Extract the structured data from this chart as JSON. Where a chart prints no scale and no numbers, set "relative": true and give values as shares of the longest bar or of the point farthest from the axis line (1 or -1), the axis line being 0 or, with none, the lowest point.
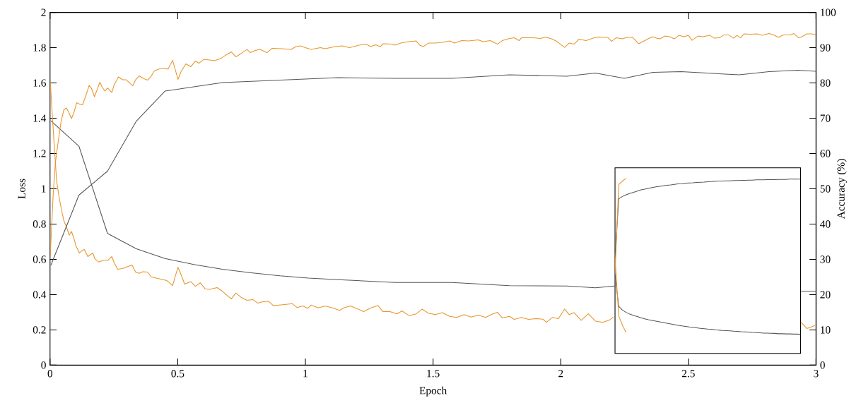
{
  "chart_data": [
    {
      "type": "line",
      "xlabel": "Epoch",
      "ylabel": "Loss",
      "y2label": "Accuracy (%)",
      "xlim": [
        0,
        3
      ],
      "xticks": [
        0,
        0.5,
        1,
        1.5,
        2,
        2.5,
        3
      ],
      "ylim": [
        0,
        2
      ],
      "yticks": [
        0,
        0.2,
        0.4,
        0.6,
        0.8,
        1,
        1.2,
        1.4,
        1.6,
        1.8,
        2
      ],
      "y2lim": [
        0,
        100
      ],
      "y2ticks": [
        0,
        10,
        20,
        30,
        40,
        50,
        60,
        70,
        80,
        90,
        100
      ],
      "series": [
        {
          "color": "#555555",
          "x": [
            0.003,
            0.113,
            0.225,
            0.338,
            0.45,
            0.563,
            0.675,
            0.787,
            0.9,
            1.012,
            1.128,
            1.353,
            1.574,
            1.799,
            2.024,
            2.136,
            2.211,
            2.5,
            2.941,
            3.0
          ],
          "values": [
            1.386,
            1.242,
            0.747,
            0.66,
            0.605,
            0.571,
            0.544,
            0.524,
            0.507,
            0.494,
            0.485,
            0.469,
            0.469,
            0.451,
            0.449,
            0.439,
            0.449,
            null,
            0.42,
            0.42
          ]
        },
        {
          "color": "#555555",
          "axis": "y2",
          "x": [
            0.003,
            0.113,
            0.225,
            0.338,
            0.45,
            0.675,
            1.128,
            1.353,
            1.574,
            1.799,
            2.024,
            2.136,
            2.249,
            2.361,
            2.472,
            2.699,
            2.816,
            2.927,
            3.0
          ],
          "values": [
            28.3,
            48.2,
            55.0,
            69.2,
            77.7,
            80.1,
            81.5,
            81.3,
            81.3,
            82.3,
            81.9,
            82.8,
            81.3,
            83.0,
            83.2,
            82.3,
            83.2,
            83.6,
            83.3
          ]
        },
        {
          "color": "#e8952a",
          "x": [
            0.001,
            0.007,
            0.017,
            0.026,
            0.036,
            0.045,
            0.054,
            0.064,
            0.075,
            0.084,
            0.094,
            0.101,
            0.115,
            0.125,
            0.134,
            0.148,
            0.167,
            0.176,
            0.19,
            0.209,
            0.227,
            0.242,
            0.251,
            0.265,
            0.284,
            0.302,
            0.321,
            0.335,
            0.349,
            0.363,
            0.382,
            0.396,
            0.415,
            0.438,
            0.457,
            0.48,
            0.49,
            0.501,
            0.513,
            0.527,
            0.551,
            0.569,
            0.588,
            0.607,
            0.625,
            0.654,
            0.672,
            0.696,
            0.71,
            0.728,
            0.747,
            0.771,
            0.794,
            0.813,
            0.831,
            0.855,
            0.874,
            0.897,
            0.925,
            0.948,
            0.967,
            0.991,
            1.009,
            1.023,
            1.05,
            1.078,
            1.106,
            1.134,
            1.153,
            1.177,
            1.2,
            1.228,
            1.256,
            1.284,
            1.303,
            1.331,
            1.359,
            1.378,
            1.406,
            1.434,
            1.457,
            1.481,
            1.509,
            1.537,
            1.565,
            1.593,
            1.621,
            1.649,
            1.677,
            1.706,
            1.734,
            1.752,
            1.771,
            1.799,
            1.818,
            1.846,
            1.874,
            1.902,
            1.93,
            1.944,
            1.968,
            1.991,
            2.015,
            2.033,
            2.052,
            2.08,
            2.108,
            2.136,
            2.164,
            2.192,
            2.206,
            2.5,
            2.941,
            2.964,
            2.996
          ],
          "values": [
            1.604,
            1.461,
            1.231,
            1.042,
            0.947,
            0.88,
            0.819,
            0.785,
            0.737,
            0.758,
            0.717,
            0.677,
            0.636,
            0.649,
            0.656,
            0.616,
            0.636,
            0.602,
            0.585,
            0.595,
            0.595,
            0.616,
            0.582,
            0.544,
            0.548,
            0.558,
            0.568,
            0.528,
            0.521,
            0.53,
            0.528,
            0.501,
            0.494,
            0.487,
            0.48,
            0.451,
            0.501,
            0.555,
            0.514,
            0.46,
            0.474,
            0.447,
            0.467,
            0.433,
            0.43,
            0.44,
            0.422,
            0.392,
            0.376,
            0.409,
            0.386,
            0.368,
            0.372,
            0.352,
            0.359,
            0.363,
            0.338,
            0.341,
            0.345,
            0.349,
            0.327,
            0.336,
            0.322,
            0.341,
            0.325,
            0.336,
            0.325,
            0.311,
            0.327,
            0.336,
            0.322,
            0.304,
            0.325,
            0.338,
            0.304,
            0.304,
            0.291,
            0.308,
            0.281,
            0.291,
            0.318,
            0.295,
            0.287,
            0.298,
            0.277,
            0.271,
            0.287,
            0.273,
            0.284,
            0.271,
            0.291,
            0.3,
            0.268,
            0.277,
            0.26,
            0.271,
            0.26,
            0.264,
            0.261,
            0.243,
            0.271,
            0.264,
            0.318,
            0.287,
            0.298,
            0.254,
            0.291,
            0.25,
            0.243,
            0.257,
            0.273,
            null,
            0.243,
            0.208,
            0.225
          ]
        },
        {
          "color": "#e8952a",
          "axis": "y2",
          "x": [
            0.001,
            0.012,
            0.021,
            0.031,
            0.043,
            0.054,
            0.064,
            0.073,
            0.084,
            0.094,
            0.104,
            0.115,
            0.127,
            0.139,
            0.153,
            0.162,
            0.174,
            0.185,
            0.195,
            0.204,
            0.215,
            0.225,
            0.242,
            0.251,
            0.268,
            0.284,
            0.298,
            0.309,
            0.324,
            0.335,
            0.349,
            0.368,
            0.382,
            0.396,
            0.408,
            0.429,
            0.448,
            0.462,
            0.48,
            0.49,
            0.501,
            0.513,
            0.532,
            0.551,
            0.569,
            0.583,
            0.602,
            0.625,
            0.644,
            0.668,
            0.686,
            0.71,
            0.728,
            0.747,
            0.771,
            0.785,
            0.803,
            0.822,
            0.85,
            0.869,
            0.906,
            0.944,
            0.963,
            0.981,
            1.0,
            1.022,
            1.059,
            1.078,
            1.116,
            1.144,
            1.172,
            1.191,
            1.209,
            1.237,
            1.256,
            1.275,
            1.294,
            1.303,
            1.34,
            1.35,
            1.378,
            1.406,
            1.434,
            1.448,
            1.462,
            1.481,
            1.509,
            1.537,
            1.565,
            1.584,
            1.612,
            1.64,
            1.677,
            1.696,
            1.724,
            1.752,
            1.771,
            1.799,
            1.818,
            1.837,
            1.846,
            1.893,
            1.921,
            1.94,
            1.968,
            1.986,
            2.015,
            2.033,
            2.052,
            2.071,
            2.099,
            2.127,
            2.146,
            2.185,
            2.199,
            2.217,
            2.241,
            2.259,
            2.282,
            2.306,
            2.324,
            2.347,
            2.361,
            2.375,
            2.389,
            2.408,
            2.426,
            2.445,
            2.463,
            2.482,
            2.5,
            2.514,
            2.537,
            2.556,
            2.584,
            2.602,
            2.621,
            2.639,
            2.658,
            2.677,
            2.69,
            2.704,
            2.718,
            2.741,
            2.769,
            2.788,
            2.816,
            2.834,
            2.853,
            2.871,
            2.899,
            2.913,
            2.932,
            2.945,
            2.964,
            2.983,
            2.999
          ],
          "values": [
            31.3,
            48.0,
            57.5,
            62.9,
            69.0,
            72.4,
            72.9,
            71.7,
            69.9,
            71.7,
            74.4,
            74.0,
            73.8,
            76.1,
            79.3,
            78.5,
            76.1,
            78.2,
            80.2,
            78.8,
            77.7,
            78.6,
            77.3,
            79.5,
            81.7,
            80.9,
            80.9,
            80.2,
            79.2,
            80.9,
            82.0,
            81.2,
            80.8,
            81.9,
            83.4,
            84.0,
            84.2,
            83.9,
            86.4,
            83.9,
            81.0,
            83.2,
            85.4,
            84.6,
            86.2,
            85.6,
            86.7,
            86.5,
            86.3,
            86.9,
            87.8,
            88.8,
            87.4,
            88.3,
            89.5,
            88.6,
            89.2,
            89.5,
            88.6,
            89.8,
            89.7,
            89.5,
            90.3,
            90.5,
            90.0,
            89.5,
            90.0,
            89.7,
            90.3,
            90.5,
            90.0,
            90.3,
            90.7,
            91.0,
            90.3,
            90.8,
            90.3,
            91.1,
            91.0,
            90.7,
            91.4,
            91.7,
            91.9,
            90.7,
            90.3,
            91.3,
            91.3,
            91.5,
            91.9,
            91.3,
            92.0,
            91.9,
            92.2,
            91.7,
            92.0,
            91.0,
            92.0,
            92.6,
            92.8,
            92.0,
            92.8,
            92.8,
            92.6,
            93.0,
            92.4,
            91.7,
            90.1,
            91.3,
            91.0,
            92.4,
            92.0,
            92.7,
            93.0,
            92.9,
            91.8,
            92.8,
            92.5,
            92.9,
            92.9,
            91.1,
            91.8,
            92.7,
            93.1,
            92.7,
            92.5,
            93.3,
            93.1,
            92.5,
            93.5,
            93.1,
            93.5,
            92.1,
            93.3,
            93.1,
            93.5,
            92.7,
            92.8,
            93.6,
            93.6,
            92.7,
            93.5,
            92.8,
            93.9,
            93.8,
            93.9,
            93.5,
            94.0,
            93.6,
            92.9,
            93.6,
            93.6,
            94.0,
            92.8,
            93.1,
            93.9,
            93.9,
            93.6
          ]
        }
      ]
    },
    {
      "type": "line",
      "relative": true,
      "categories": [
        null,
        null,
        null,
        null,
        null,
        null,
        null,
        null,
        null,
        null,
        null,
        null,
        null,
        null,
        null,
        null,
        null,
        null,
        null,
        null,
        null,
        null,
        null,
        null,
        null,
        null,
        null,
        null,
        null,
        null,
        null,
        null,
        null,
        null,
        null,
        null,
        null,
        null,
        null,
        null,
        null,
        null,
        null,
        null,
        null,
        null,
        null,
        null,
        null,
        null,
        null
      ],
      "series": [
        {
          "color": "#555555",
          "values": [
            0.55,
            0.883,
            0.896,
            0.906,
            0.914,
            0.92,
            0.927,
            0.934,
            0.938,
            0.943,
            0.947,
            0.951,
            0.954,
            0.957,
            0.96,
            0.962,
            0.965,
            0.968,
            0.969,
            0.972,
            0.973,
            0.974,
            0.976,
            0.977,
            0.978,
            0.98,
            0.981,
            0.983,
            0.984,
            0.984,
            0.985,
            0.985,
            0.987,
            0.987,
            0.988,
            0.988,
            0.989,
            0.989,
            0.991,
            0.991,
            0.991,
            0.992,
            0.992,
            0.992,
            0.993,
            0.993,
            0.993,
            0.995,
            0.995,
            0.995,
            0.995
          ]
        },
        {
          "color": "#555555",
          "values": [
            0.45,
            0.268,
            0.247,
            0.234,
            0.224,
            0.216,
            0.21,
            0.203,
            0.197,
            0.192,
            0.188,
            0.184,
            0.18,
            0.176,
            0.172,
            0.168,
            0.164,
            0.16,
            0.157,
            0.154,
            0.151,
            0.149,
            0.146,
            0.143,
            0.141,
            0.139,
            0.138,
            0.135,
            0.133,
            0.131,
            0.13,
            0.129,
            0.127,
            0.126,
            0.124,
            0.123,
            0.122,
            0.12,
            0.119,
            0.118,
            0.116,
            0.116,
            0.115,
            0.114,
            0.112,
            0.112,
            0.111,
            0.111,
            0.11,
            0.11,
            0.108
          ]
        },
        {
          "color": "#e8952a",
          "values": [
            0.45,
            0.964,
            0.984,
            1.0,
            null,
            null,
            null,
            null,
            null,
            null,
            null,
            null,
            null,
            null,
            null,
            null,
            null,
            null,
            null,
            null,
            null,
            null,
            null,
            null,
            null,
            null,
            null,
            null,
            null,
            null,
            null,
            null,
            null,
            null,
            null,
            null,
            null,
            null,
            null,
            null,
            null,
            null,
            null,
            null,
            null,
            null,
            null,
            null,
            null,
            null,
            null
          ]
        },
        {
          "color": "#e8952a",
          "values": [
            0.55,
            0.214,
            0.16,
            0.119,
            null,
            null,
            null,
            null,
            null,
            null,
            null,
            null,
            null,
            null,
            null,
            null,
            null,
            null,
            null,
            null,
            null,
            null,
            null,
            null,
            null,
            null,
            null,
            null,
            null,
            null,
            null,
            null,
            null,
            null,
            null,
            null,
            null,
            null,
            null,
            null,
            null,
            null,
            null,
            null,
            null,
            null,
            null,
            null,
            null,
            null,
            null
          ]
        }
      ]
    }
  ]
}
